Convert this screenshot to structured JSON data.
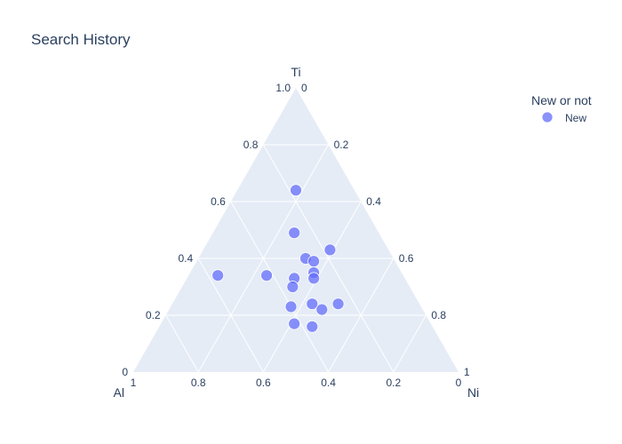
{
  "chart_data": {
    "type": "ternary-scatter",
    "title": "Search History",
    "axes": {
      "a": {
        "label": "Ti",
        "ticks": [
          "0",
          "0.2",
          "0.4",
          "0.6",
          "0.8",
          "1.0"
        ]
      },
      "b": {
        "label": "Al",
        "ticks": [
          "0",
          "0.2",
          "0.4",
          "0.6",
          "0.8",
          "1"
        ]
      },
      "c": {
        "label": "Ni",
        "ticks": [
          "0",
          "0.2",
          "0.4",
          "0.6",
          "0.8",
          "1"
        ]
      }
    },
    "grid": true,
    "legend": {
      "title": "New or not",
      "placement": "top-right"
    },
    "series": [
      {
        "name": "New",
        "color": "#636efa",
        "points": [
          {
            "a": 0.64,
            "b": 0.18,
            "c": 0.18
          },
          {
            "a": 0.49,
            "b": 0.26,
            "c": 0.25
          },
          {
            "a": 0.43,
            "b": 0.18,
            "c": 0.39
          },
          {
            "a": 0.4,
            "b": 0.27,
            "c": 0.33
          },
          {
            "a": 0.39,
            "b": 0.25,
            "c": 0.36
          },
          {
            "a": 0.34,
            "b": 0.57,
            "c": 0.09
          },
          {
            "a": 0.34,
            "b": 0.42,
            "c": 0.24
          },
          {
            "a": 0.33,
            "b": 0.34,
            "c": 0.33
          },
          {
            "a": 0.35,
            "b": 0.27,
            "c": 0.38
          },
          {
            "a": 0.33,
            "b": 0.28,
            "c": 0.39
          },
          {
            "a": 0.3,
            "b": 0.36,
            "c": 0.34
          },
          {
            "a": 0.24,
            "b": 0.33,
            "c": 0.43
          },
          {
            "a": 0.23,
            "b": 0.4,
            "c": 0.37
          },
          {
            "a": 0.22,
            "b": 0.31,
            "c": 0.47
          },
          {
            "a": 0.24,
            "b": 0.25,
            "c": 0.51
          },
          {
            "a": 0.17,
            "b": 0.42,
            "c": 0.41
          },
          {
            "a": 0.16,
            "b": 0.37,
            "c": 0.47
          }
        ]
      }
    ]
  }
}
